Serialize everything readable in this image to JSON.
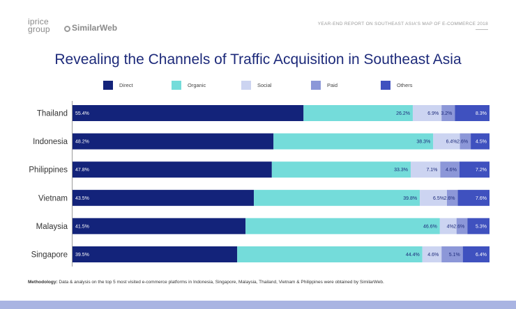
{
  "header": {
    "logo_iprice_line1": "iprice",
    "logo_iprice_line2": "group",
    "logo_similarweb": "SimilarWeb",
    "report_title": "YEAR-END REPORT ON SOUTHEAST ASIA'S MAP OF E-COMMERCE 2018"
  },
  "chart_data": {
    "type": "bar",
    "orientation": "horizontal",
    "stacked": true,
    "title": "Revealing the Channels of Traffic Acquisition in Southeast Asia",
    "categories": [
      "Thailand",
      "Indonesia",
      "Philippines",
      "Vietnam",
      "Malaysia",
      "Singapore"
    ],
    "series": [
      {
        "name": "Direct",
        "color": "#13237a",
        "values": [
          55.4,
          48.2,
          47.8,
          43.5,
          41.5,
          39.5
        ],
        "labels": [
          "55.4%",
          "48.2%",
          "47.8%",
          "43.5%",
          "41.5%",
          "39.5%"
        ]
      },
      {
        "name": "Organic",
        "color": "#74dcda",
        "values": [
          26.2,
          38.3,
          33.3,
          39.8,
          46.6,
          44.4
        ],
        "labels": [
          "26.2%",
          "38.3%",
          "33.3%",
          "39.8%",
          "46.6%",
          "44.4%"
        ]
      },
      {
        "name": "Social",
        "color": "#ccd4f1",
        "values": [
          6.9,
          6.4,
          7.1,
          6.5,
          4,
          4.6
        ],
        "labels": [
          "6.9%",
          "6.4%",
          "7.1%",
          "6.5%",
          "4%",
          "4.6%"
        ]
      },
      {
        "name": "Paid",
        "color": "#8c97d8",
        "values": [
          3.2,
          2.6,
          4.6,
          2.6,
          2.6,
          5.1
        ],
        "labels": [
          "3.2%",
          "2.6%",
          "4.6%",
          "2.6%",
          "2.6%",
          "5.1%"
        ]
      },
      {
        "name": "Others",
        "color": "#3f51bf",
        "values": [
          8.3,
          4.5,
          7.2,
          7.6,
          5.3,
          6.4
        ],
        "labels": [
          "8.3%",
          "4.5%",
          "7.2%",
          "7.6%",
          "5.3%",
          "6.4%"
        ]
      }
    ],
    "xlim": [
      0,
      100
    ],
    "legend_position": "top",
    "grid": false
  },
  "methodology": {
    "label": "Methodology:",
    "text": " Data & analysis on the top 5 most visited e-commerce platforms in Indonesia, Singapore, Malaysia, Thailand, Vietnam & Philippines were obtained by SimilarWeb."
  }
}
